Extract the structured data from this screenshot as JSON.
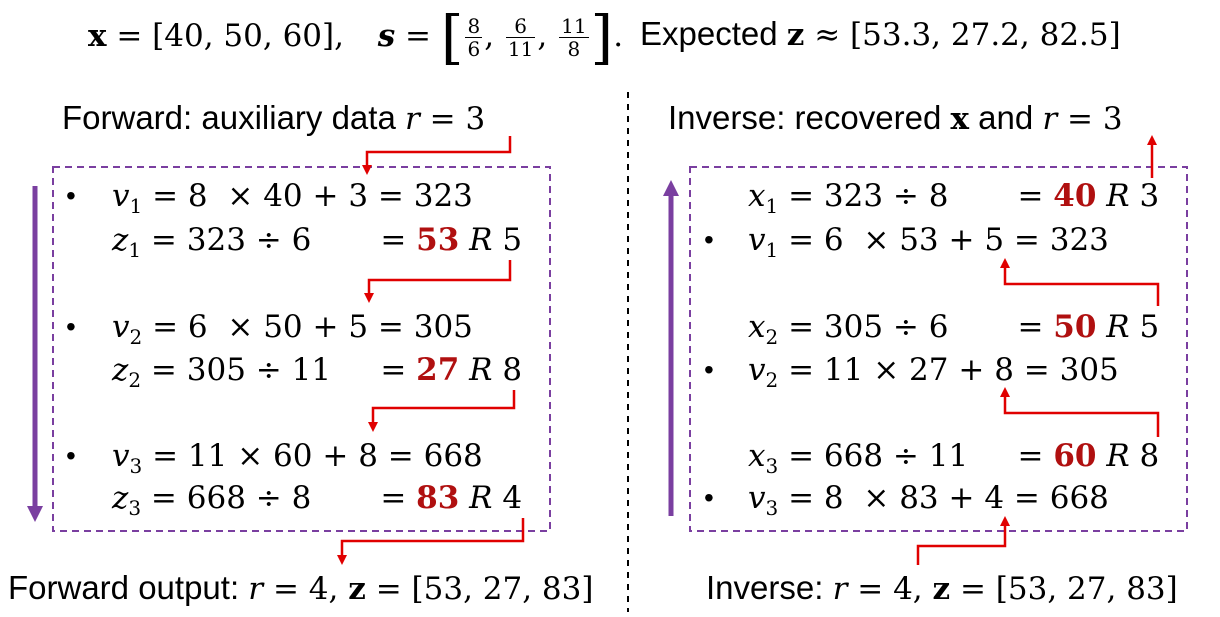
{
  "header": {
    "x_label": "x",
    "x_value": " = [40, 50, 60],",
    "s_label": "s",
    "s_eq": " = ",
    "s_fracs": [
      {
        "num": "8",
        "den": "6"
      },
      {
        "num": "6",
        "den": "11"
      },
      {
        "num": "11",
        "den": "8"
      }
    ],
    "s_end": ".",
    "expected_text": "Expected ",
    "expected_z": "z",
    "expected_value": " ≈ [53.3,  27.2,  82.5]"
  },
  "forward": {
    "title_text": "Forward: auxiliary data ",
    "title_math_var": "r",
    "title_math_rest": " = 3",
    "steps": [
      {
        "v_line_var": "v",
        "v_line_sub": "1",
        "v_line_rest": " = 8  × 40 + 3 = 323",
        "z_line_var": "z",
        "z_line_sub": "1",
        "z_line_rest": " = 323 ÷ 6       = ",
        "quotient": "53",
        "rem_var": "R",
        "rem_val": "5"
      },
      {
        "v_line_var": "v",
        "v_line_sub": "2",
        "v_line_rest": " = 6  × 50 + 5 = 305",
        "z_line_var": "z",
        "z_line_sub": "2",
        "z_line_rest": " = 305 ÷ 11     = ",
        "quotient": "27",
        "rem_var": "R",
        "rem_val": "8"
      },
      {
        "v_line_var": "v",
        "v_line_sub": "3",
        "v_line_rest": " = 11 × 60 + 8 = 668",
        "z_line_var": "z",
        "z_line_sub": "3",
        "z_line_rest": " = 668 ÷ 8       = ",
        "quotient": "83",
        "rem_var": "R",
        "rem_val": "4"
      }
    ],
    "output_text": "Forward output: ",
    "output_math_var": "r",
    "output_math_mid": " = 4, ",
    "output_math_z": "z",
    "output_math_rest": " = [53, 27, 83]"
  },
  "inverse": {
    "title_text": "Inverse: recovered ",
    "title_x": "x",
    "title_and": " and ",
    "title_math_var": "r",
    "title_math_rest": " = 3",
    "steps": [
      {
        "x_line_var": "x",
        "x_line_sub": "1",
        "x_line_rest": " = 323 ÷ 8       = ",
        "quotient": "40",
        "rem_var": "R",
        "rem_val": "3",
        "v_line_var": "v",
        "v_line_sub": "1",
        "v_line_rest": " = 6  × 53 + 5 = 323"
      },
      {
        "x_line_var": "x",
        "x_line_sub": "2",
        "x_line_rest": " = 305 ÷ 6       = ",
        "quotient": "50",
        "rem_var": "R",
        "rem_val": "5",
        "v_line_var": "v",
        "v_line_sub": "2",
        "v_line_rest": " = 11 × 27 + 8 = 305"
      },
      {
        "x_line_var": "x",
        "x_line_sub": "3",
        "x_line_rest": " = 668 ÷ 11     = ",
        "quotient": "60",
        "rem_var": "R",
        "rem_val": "8",
        "v_line_var": "v",
        "v_line_sub": "3",
        "v_line_rest": " = 8  × 83 + 4 = 668"
      }
    ],
    "input_text": "Inverse: ",
    "input_math_var": "r",
    "input_math_mid": " = 4, ",
    "input_math_z": "z",
    "input_math_rest": " = [53, 27, 83]"
  },
  "colors": {
    "arrow_red": "#e00000",
    "box_purple": "#7a3fa0",
    "quotient_red": "#b01010",
    "divider": "#000000"
  }
}
